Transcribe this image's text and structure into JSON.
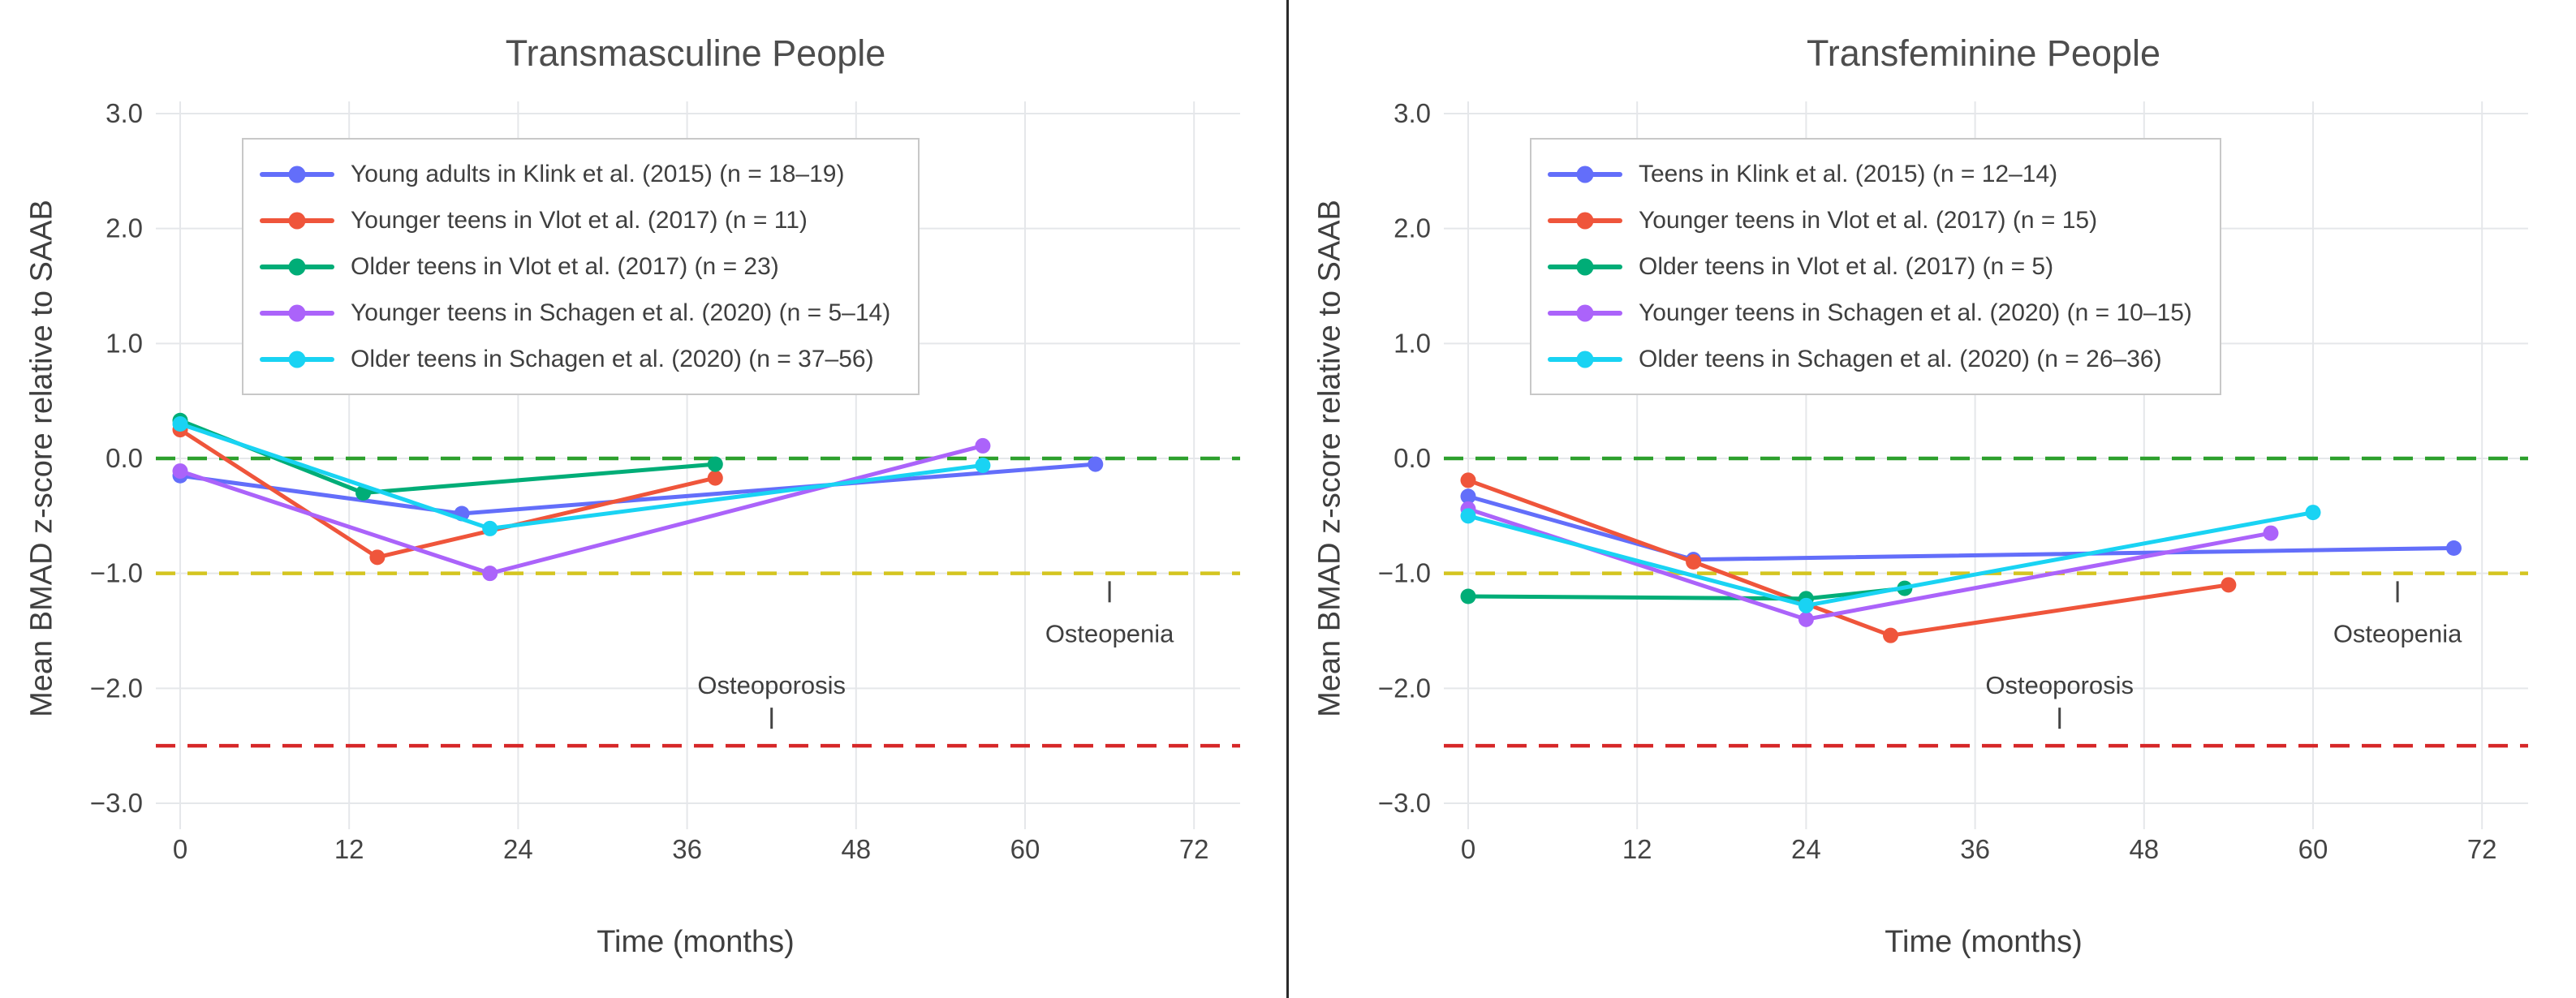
{
  "figure": {
    "background": "#ffffff",
    "divider_color": "#2a2a2a",
    "grid_color": "#e5e7ea",
    "tick_color": "#444444",
    "text_color": "#3f3f3f",
    "title_color": "#4d4d4d"
  },
  "chart_data": [
    {
      "type": "line",
      "title": "Transmasculine People",
      "xlabel": "Time (months)",
      "ylabel": "Mean BMAD z-score relative to SAAB",
      "xlim": [
        -2,
        75
      ],
      "ylim": [
        -3.4,
        3.4
      ],
      "grid": true,
      "legend_position": "inside-top-left",
      "x_ticks": [
        0,
        12,
        24,
        36,
        48,
        60,
        72
      ],
      "y_ticks": [
        {
          "value": 3,
          "label": "3.0"
        },
        {
          "value": 2,
          "label": "2.0"
        },
        {
          "value": 1,
          "label": "1.0"
        },
        {
          "value": 0,
          "label": "0.0"
        },
        {
          "value": -1,
          "label": "−1.0"
        },
        {
          "value": -2,
          "label": "−2.0"
        },
        {
          "value": -3,
          "label": "−3.0"
        }
      ],
      "series": [
        {
          "name": "Young adults in Klink et al. (2015) (n = 18–19)",
          "color": "#636EFA",
          "x": [
            0,
            20,
            65
          ],
          "y": [
            -0.15,
            -0.48,
            -0.05
          ]
        },
        {
          "name": "Younger teens in Vlot et al. (2017) (n = 11)",
          "color": "#EF553B",
          "x": [
            0,
            14,
            38
          ],
          "y": [
            0.25,
            -0.86,
            -0.17
          ]
        },
        {
          "name": "Older teens in Vlot et al. (2017) (n = 23)",
          "color": "#00AD77",
          "x": [
            0,
            13,
            38
          ],
          "y": [
            0.33,
            -0.3,
            -0.05
          ]
        },
        {
          "name": "Younger teens in Schagen et al. (2020) (n = 5–14)",
          "color": "#AB63FA",
          "x": [
            0,
            22,
            57
          ],
          "y": [
            -0.11,
            -1.0,
            0.11
          ]
        },
        {
          "name": "Older teens in Schagen et al. (2020) (n = 37–56)",
          "color": "#19D3F3",
          "x": [
            0,
            22,
            57
          ],
          "y": [
            0.3,
            -0.61,
            -0.06
          ]
        }
      ],
      "ref_lines": [
        {
          "name": "zero-line",
          "y": 0,
          "color": "#2DA02D"
        },
        {
          "name": "osteopenia-threshold",
          "y": -1,
          "color": "#D4C520"
        },
        {
          "name": "osteoporosis-threshold",
          "y": -2.5,
          "color": "#D62728"
        }
      ],
      "annotations": [
        {
          "text": "Osteopenia",
          "x": 66,
          "text_y": -1.52,
          "tick_y": -1.16
        },
        {
          "text": "Osteoporosis",
          "x": 42,
          "text_y": -1.97,
          "tick_y": -2.26
        }
      ]
    },
    {
      "type": "line",
      "title": "Transfeminine People",
      "xlabel": "Time (months)",
      "ylabel": "Mean BMAD z-score relative to SAAB",
      "xlim": [
        -2,
        75
      ],
      "ylim": [
        -3.4,
        3.4
      ],
      "grid": true,
      "legend_position": "inside-top-left",
      "x_ticks": [
        0,
        12,
        24,
        36,
        48,
        60,
        72
      ],
      "y_ticks": [
        {
          "value": 3,
          "label": "3.0"
        },
        {
          "value": 2,
          "label": "2.0"
        },
        {
          "value": 1,
          "label": "1.0"
        },
        {
          "value": 0,
          "label": "0.0"
        },
        {
          "value": -1,
          "label": "−1.0"
        },
        {
          "value": -2,
          "label": "−2.0"
        },
        {
          "value": -3,
          "label": "−3.0"
        }
      ],
      "series": [
        {
          "name": "Teens in Klink et al. (2015) (n = 12–14)",
          "color": "#636EFA",
          "x": [
            0,
            16,
            70
          ],
          "y": [
            -0.33,
            -0.88,
            -0.78
          ]
        },
        {
          "name": "Younger teens in Vlot et al. (2017) (n = 15)",
          "color": "#EF553B",
          "x": [
            0,
            16,
            30,
            54
          ],
          "y": [
            -0.19,
            -0.9,
            -1.54,
            -1.1
          ]
        },
        {
          "name": "Older teens in Vlot et al. (2017) (n = 5)",
          "color": "#00AD77",
          "x": [
            0,
            24,
            31
          ],
          "y": [
            -1.2,
            -1.22,
            -1.13
          ]
        },
        {
          "name": "Younger teens in Schagen et al. (2020) (n = 10–15)",
          "color": "#AB63FA",
          "x": [
            0,
            24,
            57
          ],
          "y": [
            -0.44,
            -1.4,
            -0.65
          ]
        },
        {
          "name": "Older teens in Schagen et al. (2020) (n = 26–36)",
          "color": "#19D3F3",
          "x": [
            0,
            24,
            60
          ],
          "y": [
            -0.5,
            -1.28,
            -0.47
          ]
        }
      ],
      "ref_lines": [
        {
          "name": "zero-line",
          "y": 0,
          "color": "#2DA02D"
        },
        {
          "name": "osteopenia-threshold",
          "y": -1,
          "color": "#D4C520"
        },
        {
          "name": "osteoporosis-threshold",
          "y": -2.5,
          "color": "#D62728"
        }
      ],
      "annotations": [
        {
          "text": "Osteopenia",
          "x": 66,
          "text_y": -1.52,
          "tick_y": -1.16
        },
        {
          "text": "Osteoporosis",
          "x": 42,
          "text_y": -1.97,
          "tick_y": -2.26
        }
      ]
    }
  ]
}
